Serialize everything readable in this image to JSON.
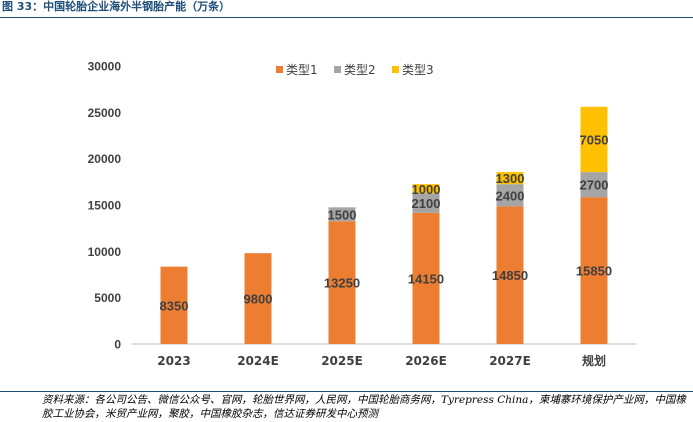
{
  "figure": {
    "title": "图 33：中国轮胎企业海外半钢胎产能（万条）",
    "source_label": "资料来源：",
    "source_text": "各公司公告、微信公众号、官网，轮胎世界网，人民网，中国轮胎商务网，Tyrepress China，柬埔寨环境保护产业网，中国橡胶工业协会，米贸产业网，聚胶，中国橡胶杂志，信达证券研发中心预测"
  },
  "colors": {
    "series1": "#ED7D31",
    "series2": "#A5A5A5",
    "series3": "#FFC000",
    "axis": "#BFBFBF",
    "text": "#404040"
  },
  "chart_data": {
    "type": "bar",
    "stacked": true,
    "categories": [
      "2023",
      "2024E",
      "2025E",
      "2026E",
      "2027E",
      "规划"
    ],
    "series": [
      {
        "name": "类型1",
        "values": [
          8350,
          9800,
          13250,
          14150,
          14850,
          15850
        ]
      },
      {
        "name": "类型2",
        "values": [
          0,
          0,
          1500,
          2100,
          2400,
          2700
        ]
      },
      {
        "name": "类型3",
        "values": [
          0,
          0,
          0,
          1000,
          1300,
          7050
        ]
      }
    ],
    "ylim": [
      0,
      30000
    ],
    "yticks": [
      0,
      5000,
      10000,
      15000,
      20000,
      25000,
      30000
    ],
    "legend_position": "top",
    "grid": false,
    "data_labels": true
  }
}
